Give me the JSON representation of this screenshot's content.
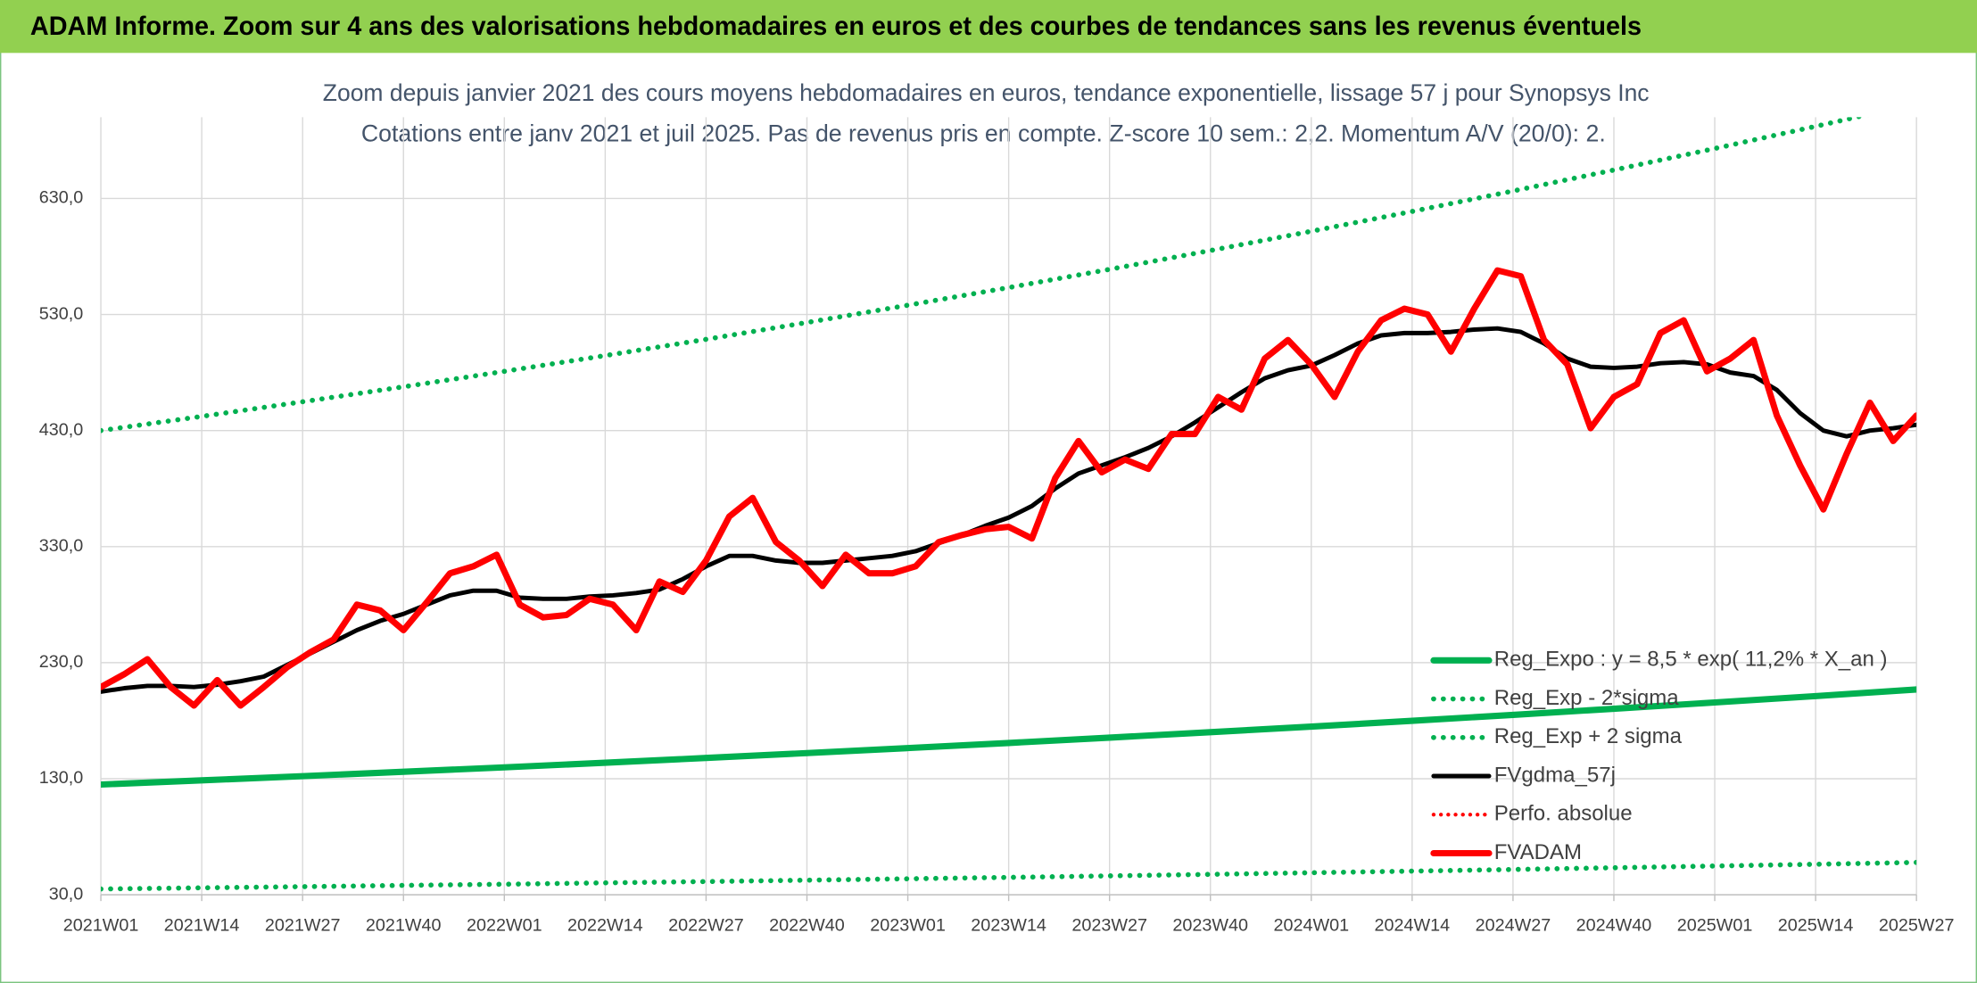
{
  "header": {
    "title": "ADAM Informe. Zoom sur 4 ans des valorisations hebdomadaires en euros et des courbes de tendances sans les revenus éventuels"
  },
  "chart_data": {
    "type": "line",
    "title": "Zoom depuis janvier 2021 des cours moyens hebdomadaires en euros, tendance exponentielle, lissage 57 j pour Synopsys Inc",
    "subtitle": "Cotations entre janv 2021 et juil 2025. Pas de revenus pris en compte. Z-score 10 sem.: 2,2. Momentum A/V (20/0): 2.",
    "x": [
      0,
      3,
      6,
      9,
      12,
      15,
      18,
      21,
      24,
      27,
      30,
      33,
      36,
      39,
      42,
      45,
      48,
      51,
      54,
      57,
      60,
      63,
      66,
      69,
      72,
      75,
      78,
      81,
      84,
      87,
      90,
      93,
      96,
      99,
      102,
      105,
      108,
      111,
      114,
      117,
      120,
      123,
      126,
      129,
      132,
      135,
      138,
      141,
      144,
      147,
      150,
      153,
      156,
      159,
      162,
      165,
      168,
      171,
      174,
      177,
      180,
      183,
      186,
      189,
      192,
      195,
      198,
      201,
      204,
      207,
      210,
      213,
      216,
      219,
      222,
      225,
      228,
      231,
      234
    ],
    "xlim": [
      0,
      234
    ],
    "xticks": [
      {
        "value": 0,
        "label": "2021W01"
      },
      {
        "value": 13,
        "label": "2021W14"
      },
      {
        "value": 26,
        "label": "2021W27"
      },
      {
        "value": 39,
        "label": "2021W40"
      },
      {
        "value": 52,
        "label": "2022W01"
      },
      {
        "value": 65,
        "label": "2022W14"
      },
      {
        "value": 78,
        "label": "2022W27"
      },
      {
        "value": 91,
        "label": "2022W40"
      },
      {
        "value": 104,
        "label": "2023W01"
      },
      {
        "value": 117,
        "label": "2023W14"
      },
      {
        "value": 130,
        "label": "2023W27"
      },
      {
        "value": 143,
        "label": "2023W40"
      },
      {
        "value": 156,
        "label": "2024W01"
      },
      {
        "value": 169,
        "label": "2024W14"
      },
      {
        "value": 182,
        "label": "2024W27"
      },
      {
        "value": 195,
        "label": "2024W40"
      },
      {
        "value": 208,
        "label": "2025W01"
      },
      {
        "value": 221,
        "label": "2025W14"
      },
      {
        "value": 234,
        "label": "2025W27"
      }
    ],
    "ylim": [
      30,
      700
    ],
    "yticks": [
      {
        "value": 30,
        "label": "30,0"
      },
      {
        "value": 130,
        "label": "130,0"
      },
      {
        "value": 230,
        "label": "230,0"
      },
      {
        "value": 330,
        "label": "330,0"
      },
      {
        "value": 430,
        "label": "430,0"
      },
      {
        "value": 530,
        "label": "530,0"
      },
      {
        "value": 630,
        "label": "630,0"
      }
    ],
    "grid": true,
    "series": [
      {
        "name": "Reg_Expo : y = 8,5 * exp( 11,2% *  X_an )",
        "color": "#00b050",
        "style": "solid",
        "width": 5,
        "x": [
          0,
          13,
          26,
          39,
          52,
          65,
          78,
          91,
          104,
          117,
          130,
          143,
          156,
          169,
          182,
          195,
          208,
          221,
          234
        ],
        "values": [
          125.0,
          128.6,
          132.2,
          136.0,
          139.8,
          143.8,
          147.9,
          152.1,
          156.4,
          160.8,
          165.4,
          170.1,
          174.9,
          179.9,
          185.0,
          190.3,
          195.7,
          201.2,
          206.9
        ]
      },
      {
        "name": "Reg_Exp - 2*sigma",
        "color": "#00b050",
        "style": "dotted",
        "width": 4,
        "x": [
          0,
          13,
          26,
          39,
          52,
          65,
          78,
          91,
          104,
          117,
          130,
          143,
          156,
          169,
          182,
          195,
          208,
          221,
          234
        ],
        "values": [
          35.0,
          36.0,
          37.0,
          38.1,
          39.1,
          40.3,
          41.4,
          42.6,
          43.8,
          45.0,
          46.3,
          47.6,
          49.0,
          50.4,
          51.8,
          53.3,
          54.8,
          56.3,
          57.9
        ]
      },
      {
        "name": "Reg_Exp + 2 sigma",
        "color": "#00b050",
        "style": "dotted",
        "width": 4,
        "x": [
          0,
          13,
          26,
          39,
          52,
          65,
          78,
          91,
          104,
          117,
          130,
          143,
          156,
          169,
          182,
          195,
          208,
          221,
          234
        ],
        "values": [
          430.0,
          442.2,
          454.8,
          467.7,
          481.0,
          494.6,
          508.6,
          523.1,
          538.0,
          553.2,
          568.9,
          585.1,
          601.7,
          618.8,
          636.4,
          654.5,
          673.0,
          692.1,
          711.8
        ]
      },
      {
        "name": "FVgdma_57j",
        "color": "#000000",
        "style": "solid",
        "width": 3.5,
        "values": [
          205,
          208,
          210,
          210,
          209,
          211,
          214,
          218,
          228,
          238,
          248,
          258,
          266,
          272,
          280,
          288,
          292,
          292,
          286,
          285,
          285,
          287,
          288,
          290,
          293,
          302,
          313,
          322,
          322,
          318,
          316,
          316,
          318,
          320,
          322,
          326,
          333,
          340,
          348,
          355,
          365,
          380,
          393,
          400,
          407,
          415,
          425,
          437,
          450,
          463,
          475,
          482,
          486,
          495,
          505,
          512,
          514,
          514,
          515,
          517,
          518,
          515,
          505,
          492,
          485,
          484,
          485,
          488,
          489,
          487,
          480,
          477,
          465,
          445,
          430,
          425,
          430,
          432,
          435
        ]
      },
      {
        "name": "Perfo. absolue",
        "color": "#ff0000",
        "style": "dotted",
        "width": 3,
        "x": [],
        "values": []
      },
      {
        "name": "FVADAM",
        "color": "#ff0000",
        "style": "solid",
        "width": 5,
        "values": [
          209,
          220,
          233,
          209,
          193,
          215,
          193,
          209,
          226,
          239,
          250,
          280,
          275,
          258,
          282,
          307,
          313,
          323,
          280,
          269,
          271,
          285,
          280,
          258,
          300,
          291,
          318,
          356,
          372,
          334,
          318,
          296,
          323,
          307,
          307,
          313,
          334,
          340,
          345,
          347,
          337,
          389,
          421,
          394,
          405,
          397,
          427,
          427,
          459,
          448,
          492,
          508,
          487,
          459,
          498,
          525,
          535,
          530,
          498,
          535,
          568,
          563,
          508,
          487,
          432,
          459,
          470,
          514,
          525,
          481,
          492,
          508,
          443,
          400,
          362,
          410,
          454,
          421,
          443
        ]
      }
    ],
    "legend": "bottom-right"
  }
}
